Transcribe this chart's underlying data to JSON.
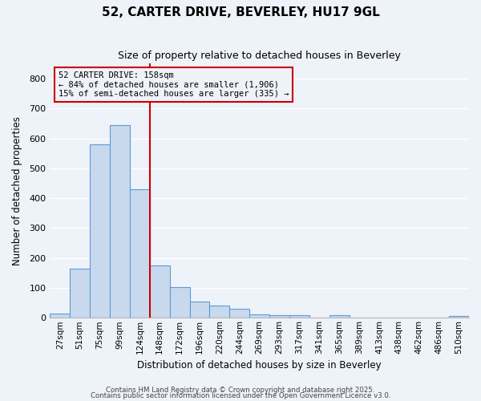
{
  "title": "52, CARTER DRIVE, BEVERLEY, HU17 9GL",
  "subtitle": "Size of property relative to detached houses in Beverley",
  "xlabel": "Distribution of detached houses by size in Beverley",
  "ylabel": "Number of detached properties",
  "categories": [
    "27sqm",
    "51sqm",
    "75sqm",
    "99sqm",
    "124sqm",
    "148sqm",
    "172sqm",
    "196sqm",
    "220sqm",
    "244sqm",
    "269sqm",
    "293sqm",
    "317sqm",
    "341sqm",
    "365sqm",
    "389sqm",
    "413sqm",
    "438sqm",
    "462sqm",
    "486sqm",
    "510sqm"
  ],
  "values": [
    15,
    165,
    580,
    645,
    430,
    175,
    103,
    55,
    40,
    30,
    12,
    10,
    8,
    0,
    8,
    0,
    0,
    0,
    0,
    0,
    5
  ],
  "bar_color": "#c9d9ed",
  "bar_edge_color": "#5b9bd5",
  "background_color": "#eef2f9",
  "grid_color": "#ffffff",
  "annotation_box_color": "#cc0000",
  "annotation_line1": "52 CARTER DRIVE: 158sqm",
  "annotation_line2": "← 84% of detached houses are smaller (1,906)",
  "annotation_line3": "15% of semi-detached houses are larger (335) →",
  "vline_x_index": 5,
  "ylim": [
    0,
    850
  ],
  "yticks": [
    0,
    100,
    200,
    300,
    400,
    500,
    600,
    700,
    800
  ],
  "footer1": "Contains HM Land Registry data © Crown copyright and database right 2025.",
  "footer2": "Contains public sector information licensed under the Open Government Licence v3.0."
}
